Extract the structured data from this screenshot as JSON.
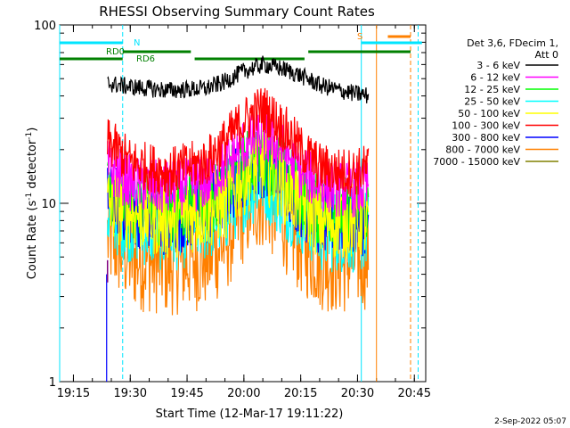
{
  "chart_data": {
    "type": "line",
    "title": "RHESSI Observing Summary Count Rates",
    "xlabel": "Start Time (12-Mar-17 19:11:22)",
    "ylabel_main": "Count Rate (s",
    "ylabel_sup1": "-1",
    "ylabel_mid": " detector",
    "ylabel_sup2": "-1",
    "ylabel_end": ")",
    "y_scale": "log",
    "ylim": [
      1,
      100
    ],
    "xlim": [
      "19:11:22",
      "20:48:00"
    ],
    "x_ticks": [
      "19:15",
      "19:30",
      "19:45",
      "20:00",
      "20:15",
      "20:30",
      "20:45"
    ],
    "y_ticks": [
      "1",
      "10",
      "100"
    ],
    "legend": {
      "placement": "right",
      "header": [
        "Det 3,6, FDecim 1,",
        "Att 0"
      ]
    },
    "series": [
      {
        "name": "3 - 6 keV",
        "color": "#000000",
        "x": [
          "19:24",
          "19:30",
          "19:40",
          "19:50",
          "19:55",
          "20:00",
          "20:05",
          "20:10",
          "20:15",
          "20:20",
          "20:25",
          "20:30",
          "20:33"
        ],
        "y": [
          47,
          45,
          43,
          44,
          48,
          55,
          60,
          57,
          52,
          46,
          43,
          41,
          40
        ]
      },
      {
        "name": "6 - 12 keV",
        "color": "#ff00ff",
        "x": [
          "19:24",
          "19:30",
          "19:40",
          "19:50",
          "19:55",
          "20:00",
          "20:05",
          "20:10",
          "20:15",
          "20:20",
          "20:25",
          "20:30",
          "20:33"
        ],
        "y": [
          16,
          13,
          12,
          13,
          16,
          21,
          24,
          20,
          15,
          13,
          12,
          12,
          12
        ]
      },
      {
        "name": "12 - 25 keV",
        "color": "#00ff00",
        "x": [
          "19:24",
          "19:30",
          "19:40",
          "19:50",
          "19:55",
          "20:00",
          "20:05",
          "20:10",
          "20:15",
          "20:20",
          "20:25",
          "20:30",
          "20:33"
        ],
        "y": [
          12,
          10,
          9,
          10,
          12,
          16,
          19,
          15,
          11,
          9,
          9,
          9,
          9
        ]
      },
      {
        "name": "25 - 50 keV",
        "color": "#00ffff",
        "x": [
          "19:24",
          "19:30",
          "19:40",
          "19:50",
          "19:55",
          "20:00",
          "20:05",
          "20:10",
          "20:15",
          "20:20",
          "20:25",
          "20:30",
          "20:33"
        ],
        "y": [
          9,
          8,
          7,
          8,
          9,
          12,
          14,
          11,
          9,
          7,
          7,
          7,
          7
        ]
      },
      {
        "name": "50 - 100 keV",
        "color": "#ffff00",
        "x": [
          "19:24",
          "19:30",
          "19:40",
          "19:50",
          "19:55",
          "20:00",
          "20:05",
          "20:10",
          "20:15",
          "20:20",
          "20:25",
          "20:30",
          "20:33"
        ],
        "y": [
          10,
          9,
          8,
          9,
          10,
          14,
          17,
          13,
          10,
          8,
          8,
          8,
          8
        ]
      },
      {
        "name": "100 - 300 keV",
        "color": "#ff0000",
        "x": [
          "19:24",
          "19:30",
          "19:40",
          "19:50",
          "19:55",
          "20:00",
          "20:05",
          "20:10",
          "20:15",
          "20:20",
          "20:25",
          "20:30",
          "20:33"
        ],
        "y": [
          22,
          17,
          15,
          17,
          22,
          29,
          34,
          27,
          20,
          16,
          15,
          15,
          16
        ]
      },
      {
        "name": "300 - 800 keV",
        "color": "#0000ff",
        "x": [
          "19:24",
          "19:30",
          "19:40",
          "19:50",
          "19:55",
          "20:00",
          "20:05",
          "20:10",
          "20:15",
          "20:20",
          "20:25",
          "20:30",
          "20:33"
        ],
        "y": [
          11,
          9,
          8,
          9,
          11,
          15,
          17,
          14,
          10,
          8,
          8,
          8,
          8
        ]
      },
      {
        "name": "800 - 7000 keV",
        "color": "#ff8000",
        "x": [
          "19:24",
          "19:30",
          "19:40",
          "19:50",
          "19:55",
          "20:00",
          "20:05",
          "20:10",
          "20:15",
          "20:20",
          "20:25",
          "20:30",
          "20:33"
        ],
        "y": [
          6.5,
          5,
          4.6,
          5,
          6,
          9,
          11,
          8.5,
          6,
          5,
          4.6,
          5,
          5
        ]
      },
      {
        "name": "7000 - 15000 keV",
        "color": "#808000",
        "x": [],
        "y": []
      }
    ],
    "annotations": {
      "labels": {
        "n": "N",
        "s": "S",
        "rd0": "RD0",
        "rd6": "RD6"
      },
      "cyan_segments": [
        [
          "19:11:22",
          "19:28"
        ],
        [
          "20:31",
          "20:47"
        ]
      ],
      "orange_segment": [
        "20:38",
        "20:44"
      ],
      "green_segments": [
        [
          "19:11:22",
          "19:28"
        ],
        [
          "19:28",
          "19:46"
        ],
        [
          "19:47",
          "20:16"
        ],
        [
          "20:17",
          "20:44"
        ]
      ],
      "cyan_vlines": [
        "19:11:22",
        "19:28",
        "20:31",
        "20:46"
      ],
      "orange_vlines": [
        "20:35",
        "20:44"
      ]
    },
    "footer_date": "2-Sep-2022 05:07"
  }
}
